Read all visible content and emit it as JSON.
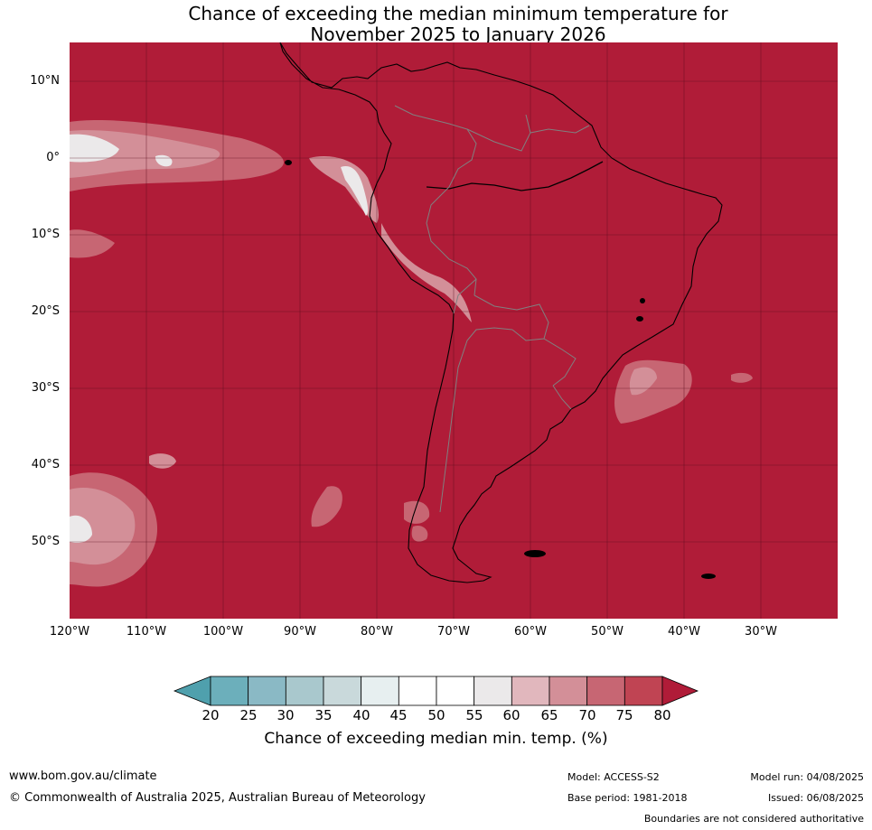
{
  "title": {
    "line1": "Chance of exceeding the median minimum temperature for",
    "line2": "November 2025 to January 2026"
  },
  "colors": {
    "ocean_land_fill": "#b01c38",
    "coast": "#000000",
    "borders": "#808080",
    "grid": "#5a0c1c"
  },
  "axes": {
    "lat_labels": [
      "10°N",
      "0°",
      "10°S",
      "20°S",
      "30°S",
      "40°S",
      "50°S"
    ],
    "lon_labels": [
      "120°W",
      "110°W",
      "100°W",
      "90°W",
      "80°W",
      "70°W",
      "60°W",
      "50°W",
      "40°W",
      "30°W"
    ]
  },
  "colorbar": {
    "ticks": [
      "20",
      "25",
      "30",
      "35",
      "40",
      "45",
      "50",
      "55",
      "60",
      "65",
      "70",
      "75",
      "80"
    ],
    "colors": [
      "#4fa0ad",
      "#6cafbb",
      "#8ab9c5",
      "#a9c8cd",
      "#c9d9db",
      "#e7eff0",
      "#ffffff",
      "#ffffff",
      "#ebe9ea",
      "#e1b7bd",
      "#d38f98",
      "#c76673",
      "#c04453",
      "#b01c38"
    ],
    "label": "Chance of exceeding median min. temp. (%)"
  },
  "footer": {
    "website": "www.bom.gov.au/climate",
    "copyright": "© Commonwealth of Australia 2025, Australian Bureau of Meteorology",
    "model": "Model: ACCESS-S2",
    "base_period": "Base period: 1981-2018",
    "model_run": "Model run: 04/08/2025",
    "issued": "Issued: 06/08/2025",
    "disclaimer": "Boundaries are not considered authoritative"
  }
}
